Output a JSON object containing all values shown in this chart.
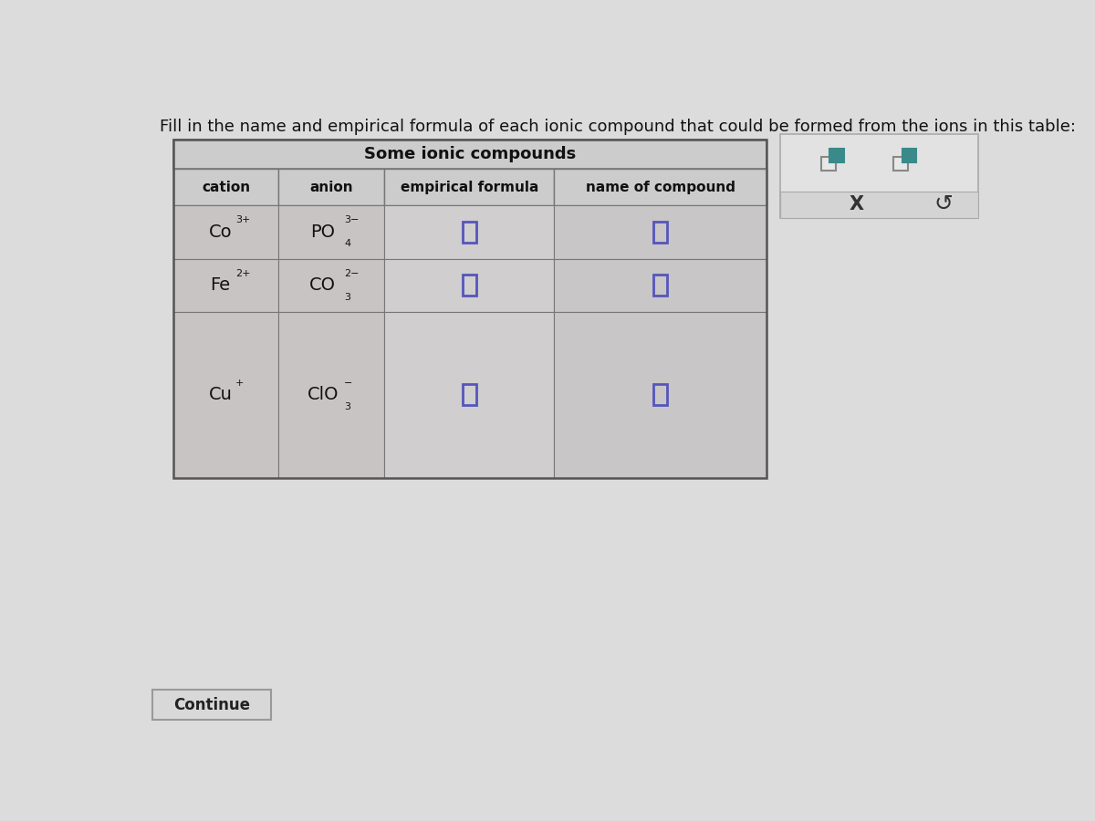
{
  "title_text": "Fill in the name and empirical formula of each ionic compound that could be formed from the ions in this table:",
  "table_title": "Some ionic compounds",
  "col_headers": [
    "cation",
    "anion",
    "empirical formula",
    "name of compound"
  ],
  "page_bg": "#dddcdc",
  "table_title_bg": "#cccccc",
  "header_bg": "#cccccc",
  "cation_col_bg": "#c8c4c4",
  "anion_col_bg": "#c8c4c4",
  "emp_col_bg": "#d0cece",
  "name_col_bg": "#c8c6c6",
  "input_box_color": "#5555bb",
  "table_border_color": "#666666",
  "title_font_size": 13,
  "header_font_size": 11,
  "cell_font_size": 14,
  "widget_color1": "#3a8a8a",
  "widget_border_color": "#999999"
}
